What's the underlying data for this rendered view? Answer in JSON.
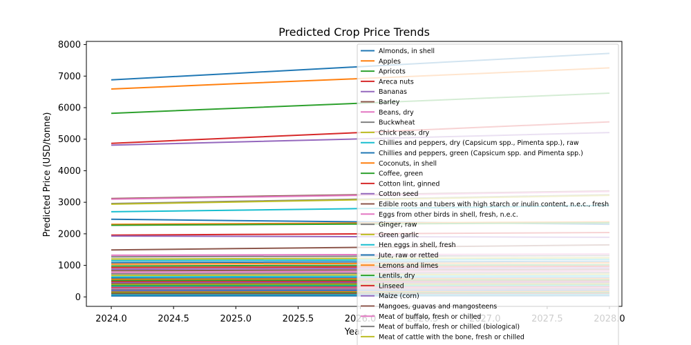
{
  "chart_data": {
    "type": "line",
    "title": "Predicted Crop Price Trends",
    "xlabel": "Year",
    "ylabel": "Predicted Price (USD/tonne)",
    "xlim": [
      2023.8,
      2028.1
    ],
    "ylim": [
      -300,
      8100
    ],
    "xticks": [
      2024.0,
      2024.5,
      2025.0,
      2025.5,
      2026.0,
      2026.5,
      2027.0,
      2027.5,
      2028.0
    ],
    "xtick_labels": [
      "2024.0",
      "2024.5",
      "2025.0",
      "2025.5",
      "2026.0",
      "2026.5",
      "2027.0",
      "2027.5",
      "2028.0"
    ],
    "yticks": [
      0,
      1000,
      2000,
      3000,
      4000,
      5000,
      6000,
      7000,
      8000
    ],
    "ytick_labels": [
      "0",
      "1000",
      "2000",
      "3000",
      "4000",
      "5000",
      "6000",
      "7000",
      "8000"
    ],
    "grid": false,
    "legend_position": "upper-right",
    "x": [
      2024,
      2025,
      2026,
      2027,
      2028
    ],
    "series": [
      {
        "name": "Almonds, in shell",
        "color": "#1f77b4",
        "values": [
          6880,
          7090,
          7300,
          7510,
          7720
        ]
      },
      {
        "name": "Apples",
        "color": "#ff7f0e",
        "values": [
          6590,
          6760,
          6920,
          7090,
          7260
        ]
      },
      {
        "name": "Apricots",
        "color": "#2ca02c",
        "values": [
          5820,
          5980,
          6140,
          6300,
          6460
        ]
      },
      {
        "name": "Areca nuts",
        "color": "#d62728",
        "values": [
          4870,
          5040,
          5210,
          5380,
          5550
        ]
      },
      {
        "name": "Bananas",
        "color": "#9467bd",
        "values": [
          4810,
          4910,
          5010,
          5110,
          5210
        ]
      },
      {
        "name": "Barley",
        "color": "#8c564b",
        "values": [
          3120,
          3180,
          3240,
          3300,
          3360
        ]
      },
      {
        "name": "Beans, dry",
        "color": "#e377c2",
        "values": [
          3100,
          3160,
          3220,
          3280,
          3340
        ]
      },
      {
        "name": "Buckwheat",
        "color": "#7f7f7f",
        "values": [
          2960,
          3030,
          3100,
          3170,
          3240
        ]
      },
      {
        "name": "Chick peas, dry",
        "color": "#bcbd22",
        "values": [
          2940,
          3010,
          3080,
          3150,
          3220
        ]
      },
      {
        "name": "Chillies and peppers, dry (Capsicum spp., Pimenta spp.), raw",
        "color": "#17becf",
        "values": [
          2700,
          2750,
          2800,
          2850,
          2900
        ]
      },
      {
        "name": "Chillies and peppers, green (Capsicum spp. and Pimenta spp.)",
        "color": "#1f77b4",
        "values": [
          2460,
          2420,
          2380,
          2340,
          2300
        ]
      },
      {
        "name": "Coconuts, in shell",
        "color": "#ff7f0e",
        "values": [
          2300,
          2320,
          2340,
          2360,
          2380
        ]
      },
      {
        "name": "Coffee, green",
        "color": "#2ca02c",
        "values": [
          2270,
          2290,
          2310,
          2330,
          2350
        ]
      },
      {
        "name": "Cotton lint, ginned",
        "color": "#d62728",
        "values": [
          1960,
          1980,
          2000,
          2020,
          2040
        ]
      },
      {
        "name": "Cotton seed",
        "color": "#9467bd",
        "values": [
          1930,
          1920,
          1910,
          1900,
          1890
        ]
      },
      {
        "name": "Edible roots and tubers with high starch or inulin content, n.e.c., fresh",
        "color": "#8c564b",
        "values": [
          1490,
          1530,
          1570,
          1610,
          1650
        ]
      },
      {
        "name": "Eggs from other birds in shell, fresh, n.e.c.",
        "color": "#e377c2",
        "values": [
          1320,
          1330,
          1340,
          1350,
          1360
        ]
      },
      {
        "name": "Ginger, raw",
        "color": "#7f7f7f",
        "values": [
          1270,
          1280,
          1290,
          1300,
          1310
        ]
      },
      {
        "name": "Green garlic",
        "color": "#bcbd22",
        "values": [
          1200,
          1210,
          1220,
          1230,
          1240
        ]
      },
      {
        "name": "Hen eggs in shell, fresh",
        "color": "#17becf",
        "values": [
          1150,
          1160,
          1170,
          1180,
          1190
        ]
      },
      {
        "name": "Jute, raw or retted",
        "color": "#1f77b4",
        "values": [
          1090,
          1100,
          1110,
          1120,
          1130
        ]
      },
      {
        "name": "Lemons and limes",
        "color": "#ff7f0e",
        "values": [
          1040,
          1050,
          1060,
          1070,
          1080
        ]
      },
      {
        "name": "Lentils, dry",
        "color": "#2ca02c",
        "values": [
          980,
          990,
          1000,
          1010,
          1020
        ]
      },
      {
        "name": "Linseed",
        "color": "#d62728",
        "values": [
          930,
          940,
          950,
          960,
          970
        ]
      },
      {
        "name": "Maize (corn)",
        "color": "#9467bd",
        "values": [
          880,
          890,
          900,
          910,
          920
        ]
      },
      {
        "name": "Mangoes, guavas and mangosteens",
        "color": "#8c564b",
        "values": [
          830,
          840,
          850,
          860,
          870
        ]
      },
      {
        "name": "Meat of buffalo, fresh or chilled",
        "color": "#e377c2",
        "values": [
          780,
          790,
          800,
          810,
          820
        ]
      },
      {
        "name": "Meat of buffalo, fresh or chilled (biological)",
        "color": "#7f7f7f",
        "values": [
          730,
          740,
          750,
          760,
          770
        ]
      },
      {
        "name": "Meat of cattle with the bone, fresh or chilled",
        "color": "#bcbd22",
        "values": [
          680,
          690,
          700,
          710,
          720
        ]
      },
      {
        "name": "",
        "color": "#17becf",
        "values": [
          630,
          640,
          650,
          660,
          670
        ]
      },
      {
        "name": "",
        "color": "#1f77b4",
        "values": [
          590,
          595,
          600,
          605,
          610
        ]
      },
      {
        "name": "",
        "color": "#ff7f0e",
        "values": [
          560,
          565,
          570,
          575,
          580
        ]
      },
      {
        "name": "",
        "color": "#2ca02c",
        "values": [
          520,
          525,
          530,
          535,
          540
        ]
      },
      {
        "name": "",
        "color": "#d62728",
        "values": [
          480,
          485,
          490,
          495,
          500
        ]
      },
      {
        "name": "",
        "color": "#9467bd",
        "values": [
          450,
          455,
          460,
          465,
          470
        ]
      },
      {
        "name": "",
        "color": "#8c564b",
        "values": [
          420,
          425,
          430,
          435,
          440
        ]
      },
      {
        "name": "",
        "color": "#bcbd22",
        "values": [
          390,
          395,
          400,
          405,
          410
        ]
      },
      {
        "name": "",
        "color": "#2ca02c",
        "values": [
          360,
          365,
          370,
          375,
          380
        ]
      },
      {
        "name": "",
        "color": "#17becf",
        "values": [
          330,
          335,
          340,
          345,
          350
        ]
      },
      {
        "name": "",
        "color": "#d62728",
        "values": [
          300,
          305,
          310,
          315,
          320
        ]
      },
      {
        "name": "",
        "color": "#e377c2",
        "values": [
          270,
          275,
          280,
          285,
          290
        ]
      },
      {
        "name": "",
        "color": "#7f7f7f",
        "values": [
          240,
          245,
          250,
          255,
          260
        ]
      },
      {
        "name": "",
        "color": "#9467bd",
        "values": [
          210,
          215,
          220,
          225,
          230
        ]
      },
      {
        "name": "",
        "color": "#1f77b4",
        "values": [
          180,
          185,
          190,
          195,
          200
        ]
      },
      {
        "name": "",
        "color": "#ff7f0e",
        "values": [
          150,
          155,
          160,
          165,
          170
        ]
      },
      {
        "name": "",
        "color": "#2ca02c",
        "values": [
          120,
          125,
          130,
          135,
          140
        ]
      },
      {
        "name": "",
        "color": "#8c564b",
        "values": [
          100,
          102,
          104,
          106,
          108
        ]
      },
      {
        "name": "",
        "color": "#17becf",
        "values": [
          60,
          62,
          64,
          66,
          68
        ]
      },
      {
        "name": "",
        "color": "#1f77b4",
        "values": [
          30,
          32,
          34,
          36,
          38
        ]
      }
    ]
  }
}
